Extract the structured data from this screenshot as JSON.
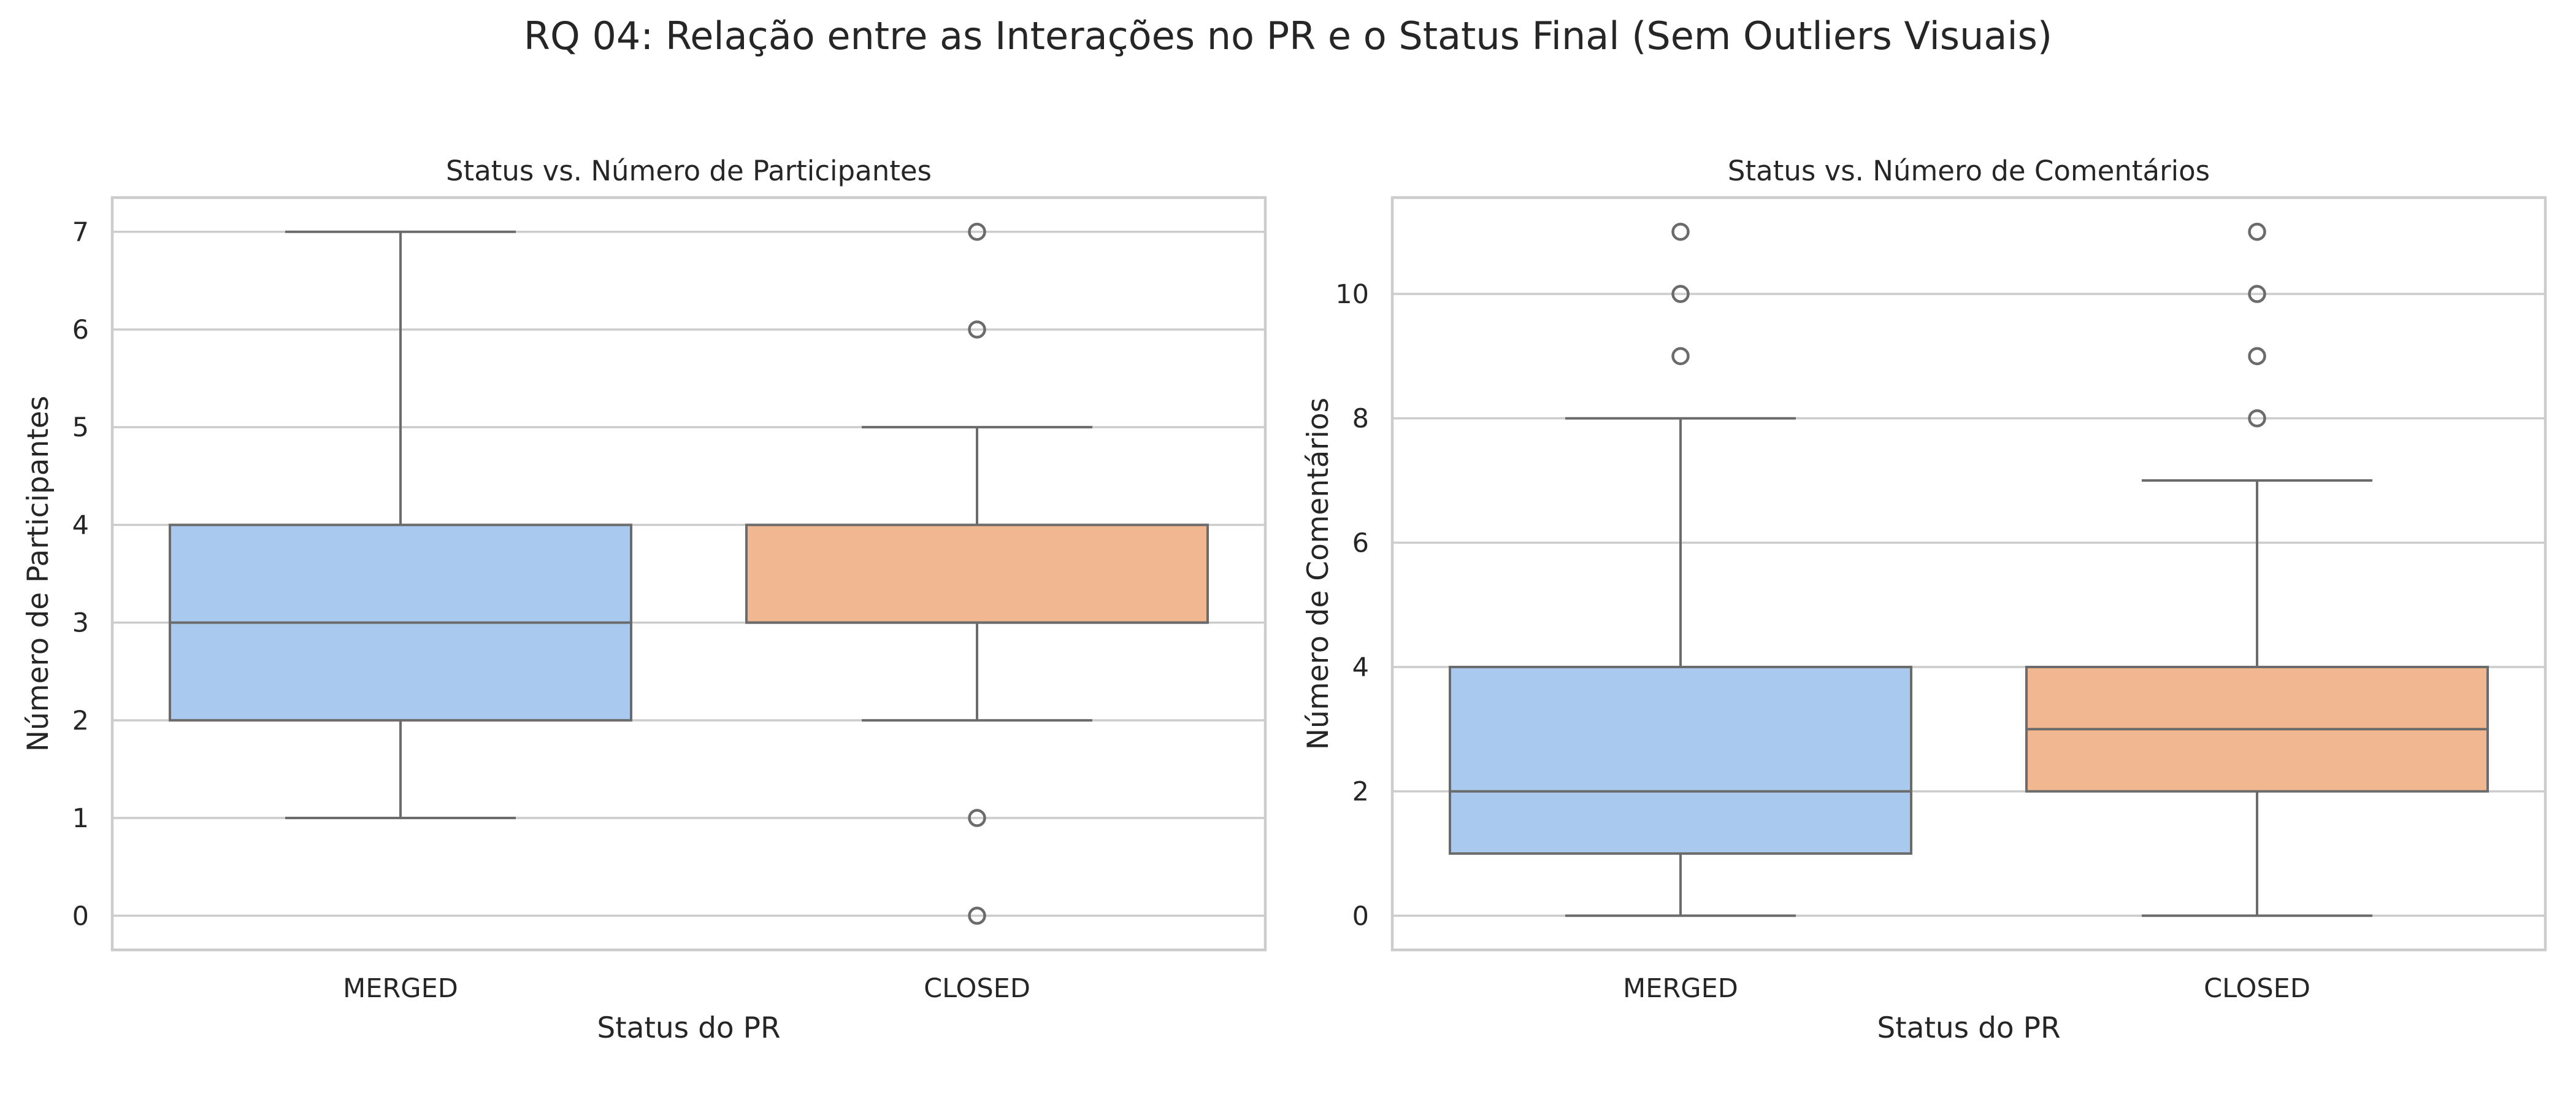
{
  "figure": {
    "suptitle": "RQ 04: Relação entre as Interações no PR e o Status Final (Sem Outliers Visuais)"
  },
  "colors": {
    "merged": "#a9c9ee",
    "closed": "#f1b791",
    "line": "#6b6b6b",
    "grid": "#cccccc",
    "frame": "#cccccc"
  },
  "chart_data": [
    {
      "type": "box",
      "title": "Status vs. Número de Participantes",
      "xlabel": "Status do PR",
      "ylabel": "Número de Participantes",
      "categories": [
        "MERGED",
        "CLOSED"
      ],
      "ylim": [
        -0.35,
        7.35
      ],
      "yticks": [
        0,
        1,
        2,
        3,
        4,
        5,
        6,
        7
      ],
      "grid": true,
      "boxes": [
        {
          "category": "MERGED",
          "whisker_low": 1,
          "q1": 2,
          "median": 3,
          "q3": 4,
          "whisker_high": 7,
          "outliers": []
        },
        {
          "category": "CLOSED",
          "whisker_low": 2,
          "q1": 3,
          "median": 3,
          "q3": 4,
          "whisker_high": 5,
          "outliers": [
            0,
            1,
            6,
            7
          ]
        }
      ]
    },
    {
      "type": "box",
      "title": "Status vs. Número de Comentários",
      "xlabel": "Status do PR",
      "ylabel": "Número de Comentários",
      "categories": [
        "MERGED",
        "CLOSED"
      ],
      "ylim": [
        -0.55,
        11.55
      ],
      "yticks": [
        0,
        2,
        4,
        6,
        8,
        10
      ],
      "grid": true,
      "boxes": [
        {
          "category": "MERGED",
          "whisker_low": 0,
          "q1": 1,
          "median": 2,
          "q3": 4,
          "whisker_high": 8,
          "outliers": [
            9,
            10,
            11
          ]
        },
        {
          "category": "CLOSED",
          "whisker_low": 0,
          "q1": 2,
          "median": 3,
          "q3": 4,
          "whisker_high": 7,
          "outliers": [
            8,
            9,
            10,
            11
          ]
        }
      ]
    }
  ]
}
